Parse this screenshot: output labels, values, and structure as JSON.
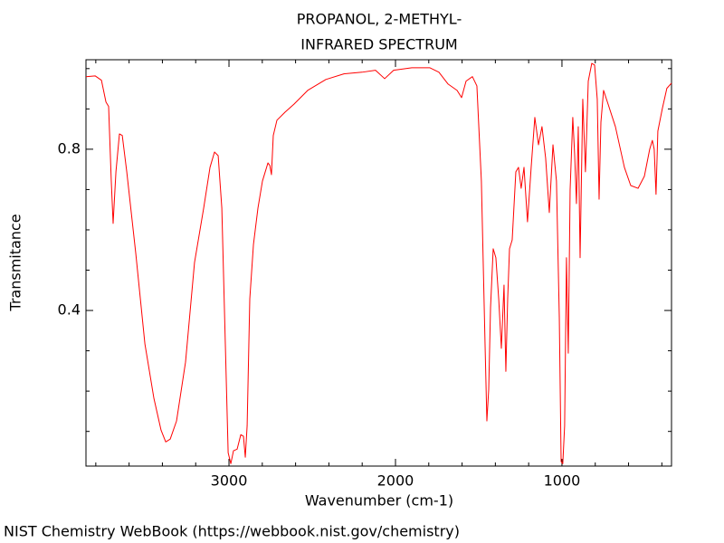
{
  "chart_data": {
    "type": "line",
    "title": "PROPANOL, 2-METHYL-",
    "subtitle": "INFRARED SPECTRUM",
    "x_label": "Wavenumber (cm-1)",
    "y_label": "Transmitance",
    "source": "NIST Chemistry WebBook (https://webbook.nist.gov/chemistry)",
    "color": "#ff0000",
    "xlim": [
      3859,
      342
    ],
    "ylim": [
      0.014,
      1.022
    ],
    "xticks": [
      3000,
      2000,
      1000
    ],
    "yticks": [
      0.4,
      0.8
    ],
    "xminorticks": [
      3800,
      3600,
      3400,
      3200,
      2800,
      2600,
      2400,
      2200,
      1800,
      1600,
      1400,
      1200,
      800,
      600,
      400
    ],
    "yminorticks": [
      0.1,
      0.2,
      0.3,
      0.5,
      0.6,
      0.7,
      0.9,
      1.0
    ],
    "x": [
      3859,
      3804,
      3766,
      3739,
      3723,
      3707,
      3696,
      3679,
      3658,
      3641,
      3614,
      3560,
      3505,
      3451,
      3408,
      3380,
      3353,
      3315,
      3261,
      3207,
      3152,
      3114,
      3087,
      3065,
      3043,
      3022,
      3005,
      2989,
      2973,
      2951,
      2929,
      2913,
      2902,
      2891,
      2875,
      2853,
      2826,
      2799,
      2766,
      2755,
      2745,
      2734,
      2712,
      2663,
      2609,
      2527,
      2418,
      2310,
      2201,
      2120,
      2065,
      2011,
      1902,
      1793,
      1739,
      1685,
      1630,
      1603,
      1576,
      1538,
      1511,
      1484,
      1462,
      1451,
      1440,
      1429,
      1413,
      1397,
      1380,
      1364,
      1348,
      1337,
      1326,
      1315,
      1299,
      1277,
      1261,
      1245,
      1228,
      1207,
      1185,
      1163,
      1141,
      1120,
      1098,
      1076,
      1054,
      1033,
      1016,
      1005,
      995,
      984,
      973,
      962,
      951,
      935,
      924,
      913,
      902,
      891,
      875,
      859,
      842,
      821,
      804,
      788,
      777,
      766,
      750,
      723,
      679,
      625,
      587,
      543,
      505,
      473,
      457,
      446,
      435,
      424,
      397,
      370,
      342
    ],
    "values": [
      0.98,
      0.982,
      0.971,
      0.917,
      0.906,
      0.721,
      0.616,
      0.744,
      0.838,
      0.834,
      0.744,
      0.542,
      0.317,
      0.182,
      0.103,
      0.074,
      0.081,
      0.126,
      0.272,
      0.519,
      0.654,
      0.755,
      0.793,
      0.784,
      0.654,
      0.317,
      0.047,
      0.02,
      0.052,
      0.056,
      0.092,
      0.088,
      0.036,
      0.114,
      0.429,
      0.564,
      0.654,
      0.721,
      0.766,
      0.76,
      0.737,
      0.834,
      0.872,
      0.892,
      0.912,
      0.946,
      0.973,
      0.987,
      0.991,
      0.996,
      0.975,
      0.996,
      1.002,
      1.002,
      0.991,
      0.962,
      0.946,
      0.928,
      0.969,
      0.98,
      0.957,
      0.721,
      0.317,
      0.126,
      0.204,
      0.407,
      0.553,
      0.531,
      0.429,
      0.306,
      0.463,
      0.249,
      0.429,
      0.553,
      0.575,
      0.744,
      0.755,
      0.703,
      0.755,
      0.62,
      0.755,
      0.879,
      0.811,
      0.856,
      0.778,
      0.643,
      0.811,
      0.721,
      0.384,
      0.025,
      0.02,
      0.114,
      0.531,
      0.294,
      0.699,
      0.879,
      0.789,
      0.665,
      0.856,
      0.531,
      0.924,
      0.744,
      0.969,
      1.013,
      1.009,
      0.924,
      0.676,
      0.867,
      0.946,
      0.912,
      0.856,
      0.755,
      0.71,
      0.703,
      0.733,
      0.8,
      0.822,
      0.8,
      0.688,
      0.845,
      0.901,
      0.951,
      0.964
    ]
  }
}
